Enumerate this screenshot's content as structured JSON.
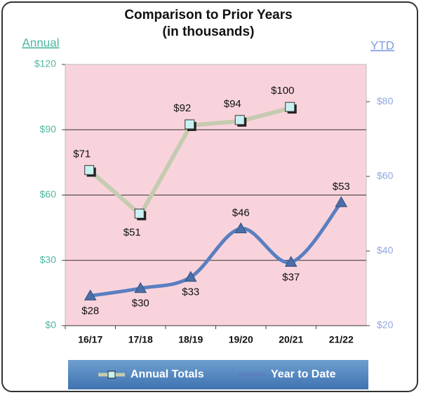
{
  "chart_data": {
    "type": "line",
    "title": "Comparison to Prior Years",
    "subtitle": "(in thousands)",
    "y_label": "Annual",
    "y2_label": "YTD",
    "categories": [
      "16/17",
      "17/18",
      "18/19",
      "19/20",
      "20/21",
      "21/22"
    ],
    "series": [
      {
        "name": "Annual Totals",
        "color": "#c5cbb0",
        "marker_color": "#c9f1f1",
        "values": [
          71,
          51,
          92,
          94,
          100,
          null
        ],
        "value_labels": [
          "$71",
          "$51",
          "$92",
          "$94",
          "$100",
          null
        ]
      },
      {
        "name": "Year to Date",
        "color": "#5a7fc0",
        "marker_color": "#4a6fa8",
        "axis": "y2",
        "values": [
          28,
          30,
          33,
          46,
          37,
          53
        ],
        "value_labels": [
          "$28",
          "$30",
          "$33",
          "$46",
          "$37",
          "$53"
        ]
      }
    ],
    "ylim": [
      0,
      120
    ],
    "yticks": [
      {
        "value": 0,
        "label": "$0"
      },
      {
        "value": 30,
        "label": "$30"
      },
      {
        "value": 60,
        "label": "$60"
      },
      {
        "value": 90,
        "label": "$90"
      },
      {
        "value": 120,
        "label": "$120"
      }
    ],
    "y2lim": [
      20,
      90
    ],
    "y2ticks": [
      {
        "value": 20,
        "label": "$20"
      },
      {
        "value": 40,
        "label": "$40"
      },
      {
        "value": 60,
        "label": "$60"
      },
      {
        "value": 80,
        "label": "$80"
      }
    ],
    "grid": true,
    "legend": "bottom"
  }
}
